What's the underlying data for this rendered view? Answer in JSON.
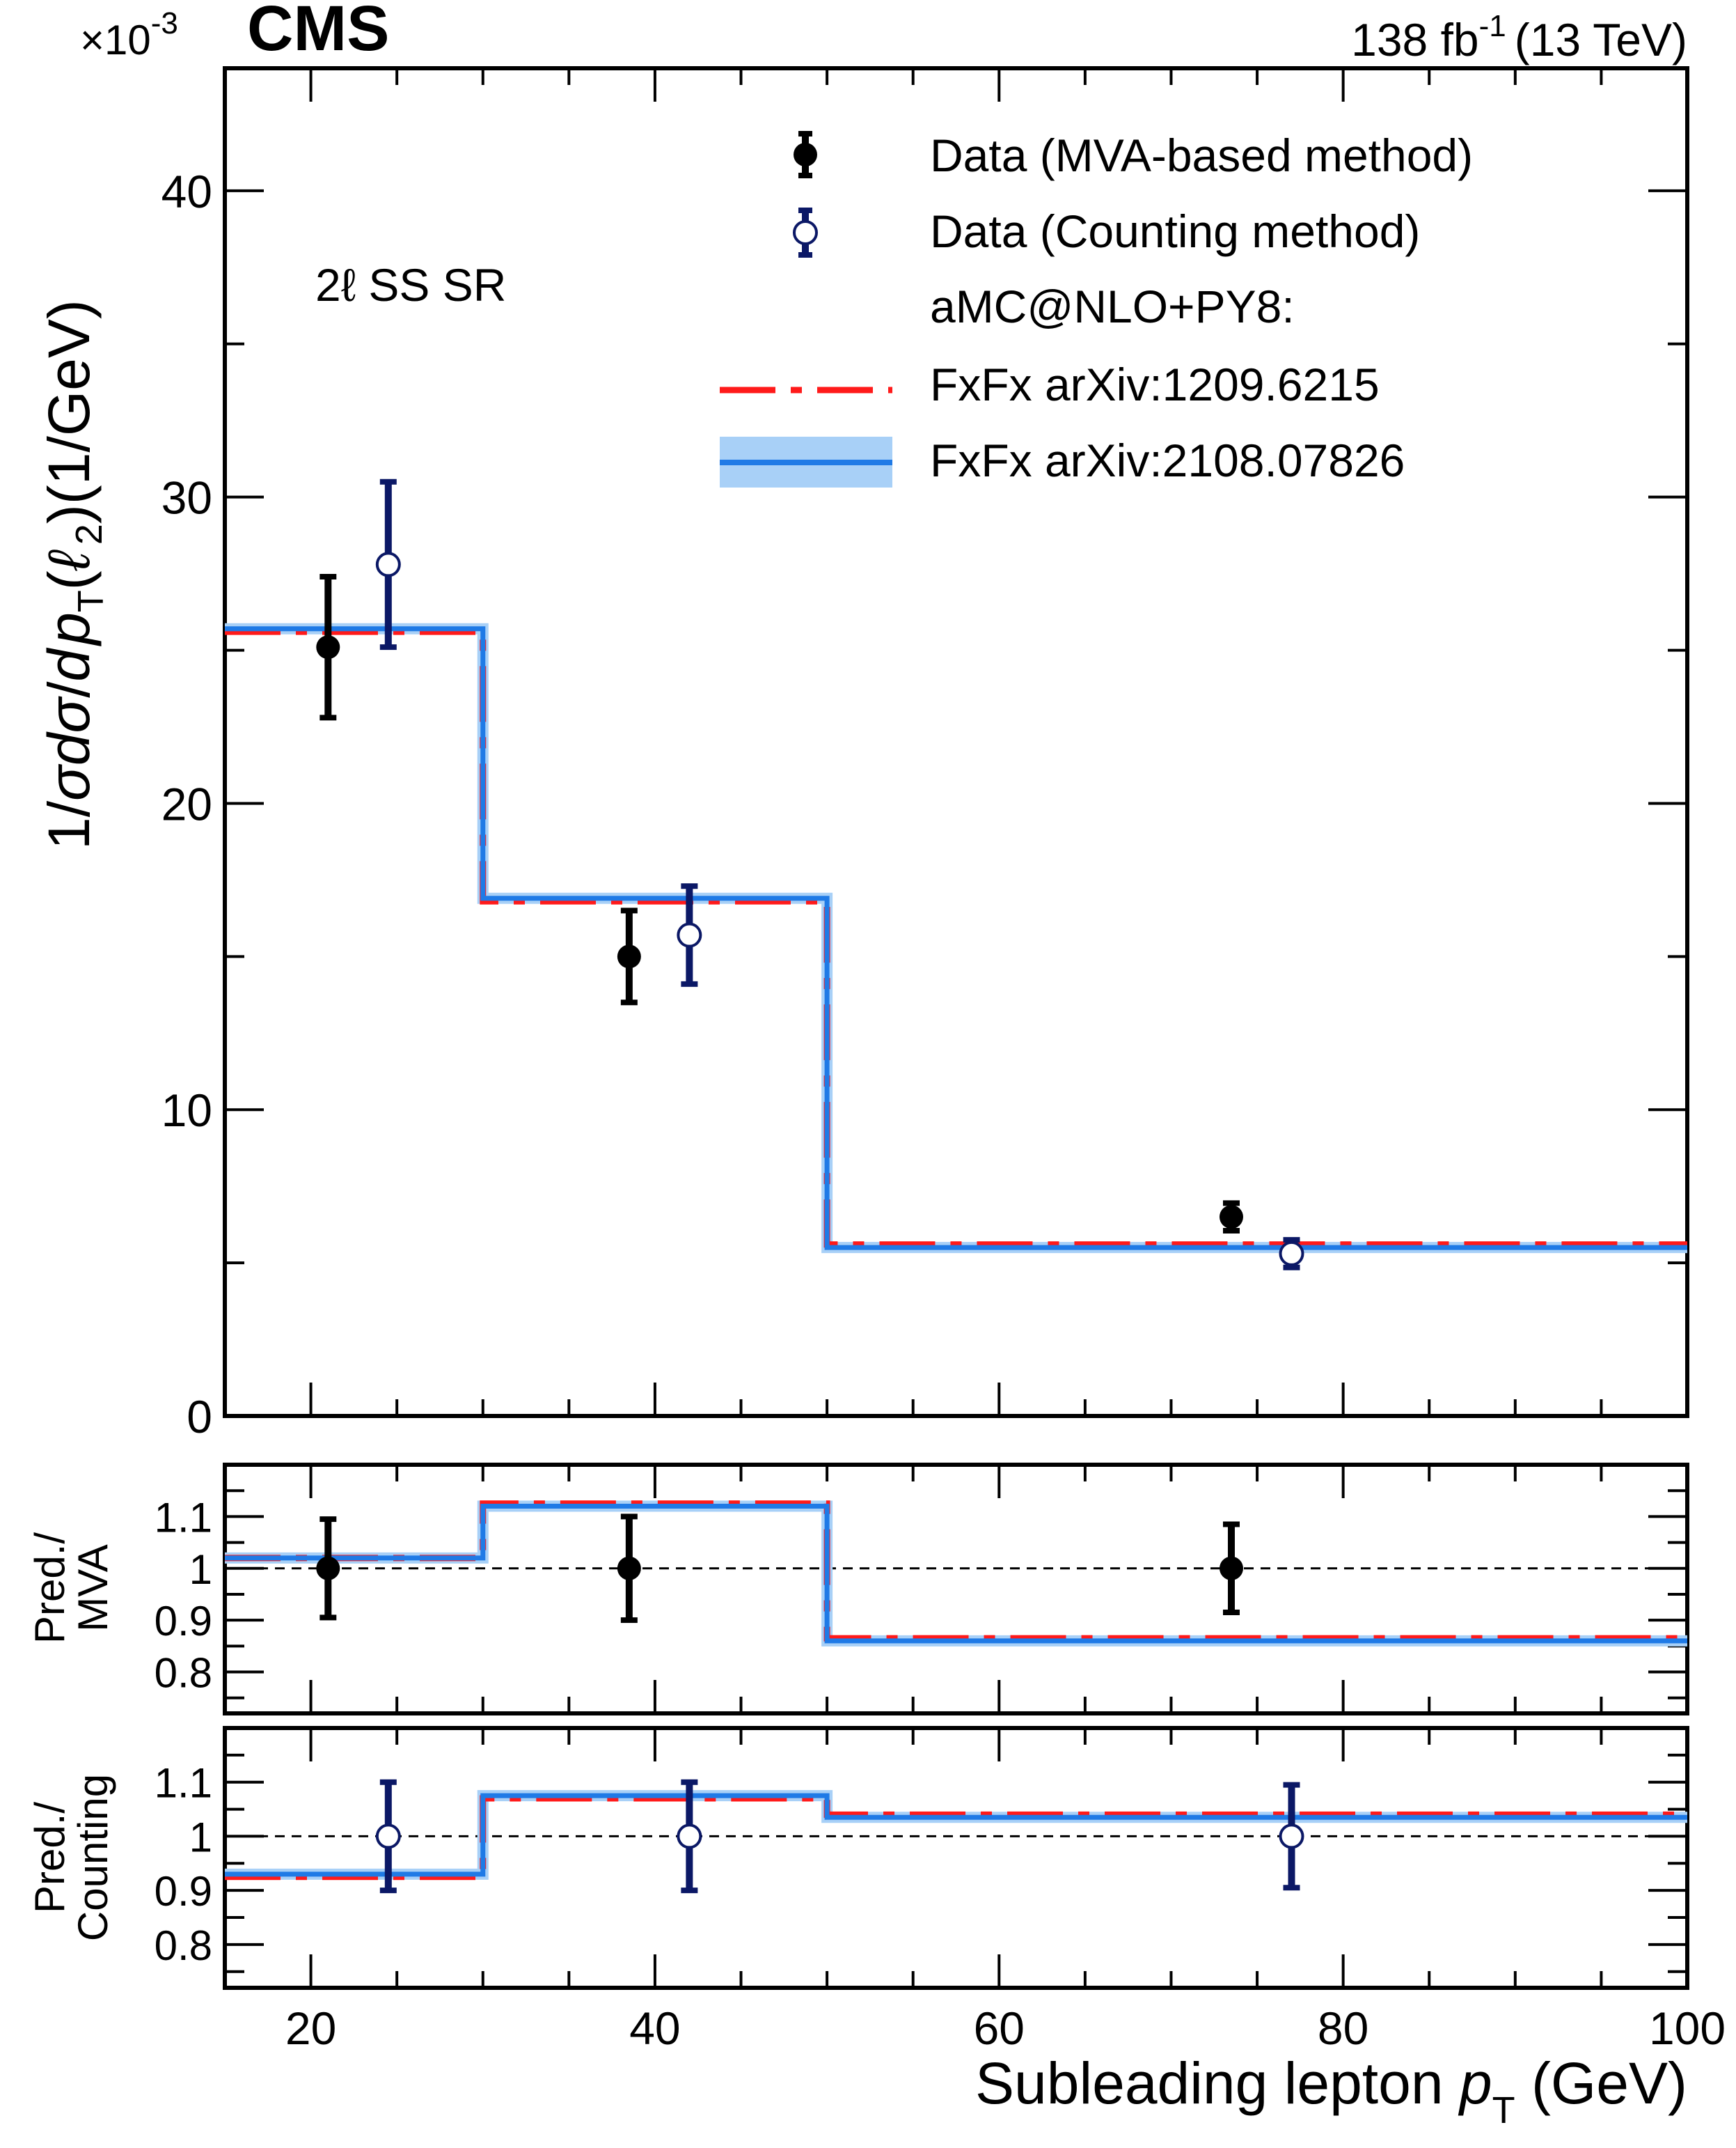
{
  "header": {
    "experiment": "CMS",
    "luminosity": "138 fb",
    "lumi_exponent": "-1",
    "energy": "(13 TeV)",
    "region": "2ℓ SS SR"
  },
  "colors": {
    "mva": "#000000",
    "counting": "#0b1866",
    "red_model": "#ff1a1a",
    "blue_model": "#1f7ae6",
    "blue_band": "#a8d0f7"
  },
  "chart_data": {
    "type": "step+errorbar",
    "title": "",
    "bins": [
      15,
      30,
      50,
      100
    ],
    "xlabel": "Subleading lepton p_T (GeV)",
    "xlim": [
      15,
      100
    ],
    "xticks": [
      20,
      40,
      60,
      80,
      100
    ],
    "main": {
      "ylabel": "1/σ dσ/d p_T(ℓ_2) (1/GeV)",
      "yscale": "×10^-3",
      "ylim": [
        0,
        44
      ],
      "yticks": [
        0,
        10,
        20,
        30,
        40
      ],
      "series": [
        {
          "name": "Data (MVA-based method)",
          "x": [
            21.0,
            38.5,
            73.5
          ],
          "y": [
            25.1,
            15.0,
            6.5
          ],
          "err": [
            2.3,
            1.5,
            0.45
          ]
        },
        {
          "name": "Data (Counting method)",
          "x": [
            24.5,
            42.0,
            77.0
          ],
          "y": [
            27.8,
            15.7,
            5.3
          ],
          "err": [
            2.7,
            1.6,
            0.45
          ]
        },
        {
          "name": "FxFx arXiv:1209.6215",
          "steps": [
            25.6,
            16.8,
            5.6
          ]
        },
        {
          "name": "FxFx arXiv:2108.07826",
          "steps": [
            25.7,
            16.9,
            5.5
          ]
        }
      ]
    },
    "ratio_mva": {
      "ylabel": "Pred./ MVA",
      "ylim": [
        0.72,
        1.2
      ],
      "yticks": [
        0.8,
        0.9,
        1,
        1.1
      ],
      "points": {
        "x": [
          21.0,
          38.5,
          73.5
        ],
        "y": [
          1,
          1,
          1
        ],
        "err": [
          0.095,
          0.1,
          0.085
        ]
      },
      "red_steps": [
        1.02,
        1.125,
        0.865
      ],
      "blue_steps": [
        1.02,
        1.12,
        0.86
      ]
    },
    "ratio_counting": {
      "ylabel": "Pred./ Counting",
      "ylim": [
        0.72,
        1.2
      ],
      "yticks": [
        0.8,
        0.9,
        1,
        1.1
      ],
      "points": {
        "x": [
          24.5,
          42.0,
          77.0
        ],
        "y": [
          1,
          1,
          1
        ],
        "err": [
          0.1,
          0.1,
          0.095
        ]
      },
      "red_steps": [
        0.925,
        1.07,
        1.04
      ],
      "blue_steps": [
        0.93,
        1.075,
        1.035
      ]
    }
  },
  "legend": {
    "mva": "Data (MVA-based method)",
    "counting": "Data (Counting method)",
    "group": "aMC@NLO+PY8:",
    "red": "FxFx arXiv:1209.6215",
    "blue": "FxFx arXiv:2108.07826"
  },
  "axes": {
    "main_ylabel_parts": [
      "1/",
      "σ",
      "d",
      "σ",
      "/",
      "d",
      "p",
      "T",
      "(",
      "ℓ",
      "2",
      ")(1/GeV)"
    ],
    "multiplier": "×10",
    "multiplier_exp": "-3",
    "ratio1_ylabel": [
      "Pred./",
      "MVA"
    ],
    "ratio2_ylabel": [
      "Pred./",
      "Counting"
    ],
    "xlabel_text": "Subleading lepton ",
    "xlabel_var": "p",
    "xlabel_sub": "T",
    "xlabel_unit": " (GeV)"
  }
}
